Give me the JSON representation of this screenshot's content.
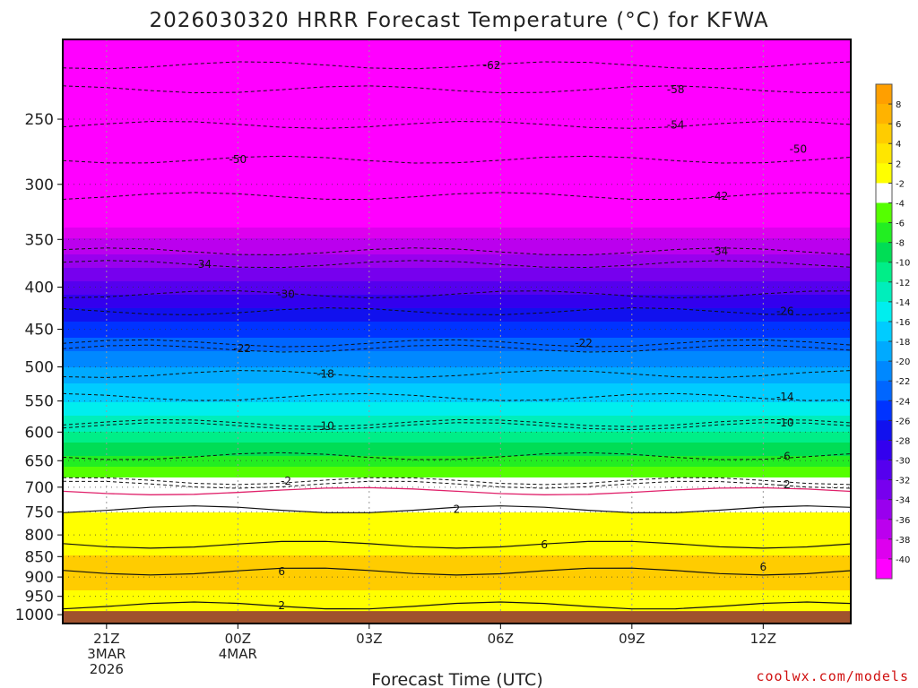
{
  "chart_data": {
    "type": "heatmap",
    "title": "2026030320 HRRR Forecast Temperature (°C) for KFWA",
    "xlabel": "Forecast Time (UTC)",
    "ylabel": "",
    "credit": "coolwx.com/models",
    "x_ticks": [
      {
        "hour": 1,
        "lines": [
          "21Z",
          "3MAR",
          "2026"
        ]
      },
      {
        "hour": 4,
        "lines": [
          "00Z",
          "4MAR"
        ]
      },
      {
        "hour": 7,
        "lines": [
          "03Z"
        ]
      },
      {
        "hour": 10,
        "lines": [
          "06Z"
        ]
      },
      {
        "hour": 13,
        "lines": [
          "09Z"
        ]
      },
      {
        "hour": 16,
        "lines": [
          "12Z"
        ]
      }
    ],
    "xlim": [
      0,
      18
    ],
    "y_ticks": [
      "250",
      "300",
      "350",
      "400",
      "450",
      "500",
      "550",
      "600",
      "650",
      "700",
      "750",
      "800",
      "850",
      "900",
      "950",
      "1000"
    ],
    "ylim_hPa": [
      200,
      1025
    ],
    "ground_level_hPa": 990,
    "colorbar": {
      "labels": [
        "8",
        "6",
        "4",
        "2",
        "-2",
        "-4",
        "-6",
        "-8",
        "-10",
        "-12",
        "-14",
        "-16",
        "-18",
        "-20",
        "-22",
        "-24",
        "-26",
        "-28",
        "-30",
        "-32",
        "-34",
        "-36",
        "-38",
        "-40"
      ],
      "colors": [
        "#ff9f00",
        "#ffb300",
        "#ffcc00",
        "#ffe600",
        "#ffff00",
        "#ffffff",
        "#55ff00",
        "#22ee22",
        "#00dd55",
        "#00ee88",
        "#00eebb",
        "#00eeee",
        "#00ccff",
        "#00aaff",
        "#0088ff",
        "#0066ff",
        "#0033ff",
        "#1111ee",
        "#3300ee",
        "#5500ee",
        "#7700ee",
        "#9900ee",
        "#bb00ee",
        "#dd00ee",
        "#ff00ff"
      ],
      "color_labels": [
        "warm4",
        "warm3",
        "warm2",
        "warm1",
        "warm0",
        "zero",
        "c1",
        "c2",
        "c3",
        "c4",
        "c5",
        "c6",
        "c7",
        "c8",
        "c9",
        "c10",
        "c11",
        "c12",
        "c13",
        "c14",
        "c15",
        "c16",
        "c17",
        "c18",
        "c19"
      ]
    },
    "temperature_profile": {
      "levels_hPa": [
        1000,
        950,
        900,
        850,
        800,
        750,
        700,
        650,
        600,
        550,
        500,
        450,
        400,
        350,
        300,
        250,
        200
      ],
      "temps_C": [
        2,
        3,
        6,
        4,
        3,
        2,
        0,
        -5,
        -10,
        -14,
        -18,
        -23,
        -29,
        -36,
        -45,
        -54,
        -62
      ]
    },
    "contour_labels": [
      {
        "value": "-62",
        "hour": 9.8,
        "hPa": 215
      },
      {
        "value": "-58",
        "hour": 14.0,
        "hPa": 230
      },
      {
        "value": "-54",
        "hour": 14.0,
        "hPa": 254
      },
      {
        "value": "-50",
        "hour": 4.0,
        "hPa": 280
      },
      {
        "value": "-50",
        "hour": 16.8,
        "hPa": 272
      },
      {
        "value": "-42",
        "hour": 15.0,
        "hPa": 310
      },
      {
        "value": "-34",
        "hour": 3.2,
        "hPa": 375
      },
      {
        "value": "-34",
        "hour": 15.0,
        "hPa": 362
      },
      {
        "value": "-30",
        "hour": 5.1,
        "hPa": 408
      },
      {
        "value": "-26",
        "hour": 16.5,
        "hPa": 428
      },
      {
        "value": "-22",
        "hour": 4.1,
        "hPa": 475
      },
      {
        "value": "-22",
        "hour": 11.9,
        "hPa": 468
      },
      {
        "value": "-18",
        "hour": 6.0,
        "hPa": 510
      },
      {
        "value": "-14",
        "hour": 16.5,
        "hPa": 544
      },
      {
        "value": "-10",
        "hour": 6.0,
        "hPa": 590
      },
      {
        "value": "-10",
        "hour": 16.5,
        "hPa": 585
      },
      {
        "value": "-6",
        "hour": 16.5,
        "hPa": 642
      },
      {
        "value": "-2",
        "hour": 5.1,
        "hPa": 688
      },
      {
        "value": "-2",
        "hour": 16.5,
        "hPa": 695
      },
      {
        "value": "2",
        "hour": 9.0,
        "hPa": 745
      },
      {
        "value": "6",
        "hour": 11.0,
        "hPa": 822
      },
      {
        "value": "6",
        "hour": 5.0,
        "hPa": 886
      },
      {
        "value": "6",
        "hour": 16.0,
        "hPa": 875
      },
      {
        "value": "2",
        "hour": 5.0,
        "hPa": 975
      }
    ]
  }
}
